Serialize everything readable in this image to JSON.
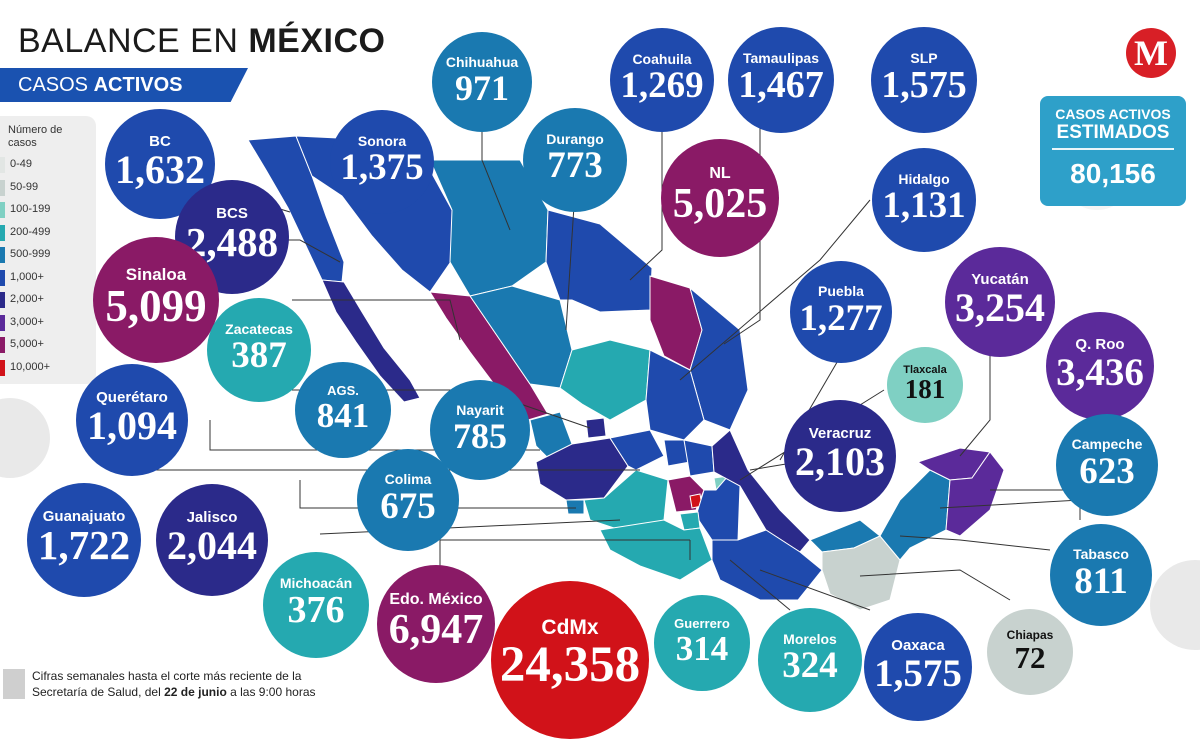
{
  "header": {
    "title_light": "BALANCE EN",
    "title_bold": "MÉXICO",
    "subtitle_light": "CASOS",
    "subtitle_bold": "ACTIVOS"
  },
  "logo": {
    "letter": "M",
    "icon": "milenio-logo-icon"
  },
  "total": {
    "label_line1": "CASOS ACTIVOS",
    "label_line2": "ESTIMADOS",
    "value": "80,156"
  },
  "legend": {
    "title": "Número de casos",
    "items": [
      {
        "label": "0-49",
        "color": "#e2e6e4"
      },
      {
        "label": "50-99",
        "color": "#c8d2cf"
      },
      {
        "label": "100-199",
        "color": "#7fd0c3"
      },
      {
        "label": "200-499",
        "color": "#25a9b0"
      },
      {
        "label": "500-999",
        "color": "#1a79b0"
      },
      {
        "label": "1,000+",
        "color": "#1f4aad"
      },
      {
        "label": "2,000+",
        "color": "#2b2a8a"
      },
      {
        "label": "3,000+",
        "color": "#5b2a9a"
      },
      {
        "label": "5,000+",
        "color": "#8a1a66"
      },
      {
        "label": "10,000+",
        "color": "#d11219"
      }
    ]
  },
  "states": [
    {
      "name": "BC",
      "value": "1,632",
      "color": "#1f4aad"
    },
    {
      "name": "Sonora",
      "value": "1,375",
      "color": "#1f4aad"
    },
    {
      "name": "Chihuahua",
      "value": "971",
      "color": "#1a79b0"
    },
    {
      "name": "Durango",
      "value": "773",
      "color": "#1a79b0"
    },
    {
      "name": "Coahuila",
      "value": "1,269",
      "color": "#1f4aad"
    },
    {
      "name": "Tamaulipas",
      "value": "1,467",
      "color": "#1f4aad"
    },
    {
      "name": "SLP",
      "value": "1,575",
      "color": "#1f4aad"
    },
    {
      "name": "BCS",
      "value": "2,488",
      "color": "#2b2a8a"
    },
    {
      "name": "NL",
      "value": "5,025",
      "color": "#8a1a66"
    },
    {
      "name": "Hidalgo",
      "value": "1,131",
      "color": "#1f4aad"
    },
    {
      "name": "Sinaloa",
      "value": "5,099",
      "color": "#8a1a66"
    },
    {
      "name": "Zacatecas",
      "value": "387",
      "color": "#25a9b0"
    },
    {
      "name": "Puebla",
      "value": "1,277",
      "color": "#1f4aad"
    },
    {
      "name": "Yucatán",
      "value": "3,254",
      "color": "#5b2a9a"
    },
    {
      "name": "Q. Roo",
      "value": "3,436",
      "color": "#5b2a9a"
    },
    {
      "name": "Tlaxcala",
      "value": "181",
      "color": "#7fd0c3"
    },
    {
      "name": "AGS.",
      "value": "841",
      "color": "#1a79b0"
    },
    {
      "name": "Querétaro",
      "value": "1,094",
      "color": "#1f4aad"
    },
    {
      "name": "Nayarit",
      "value": "785",
      "color": "#1a79b0"
    },
    {
      "name": "Veracruz",
      "value": "2,103",
      "color": "#2b2a8a"
    },
    {
      "name": "Campeche",
      "value": "623",
      "color": "#1a79b0"
    },
    {
      "name": "Colima",
      "value": "675",
      "color": "#1a79b0"
    },
    {
      "name": "Guanajuato",
      "value": "1,722",
      "color": "#1f4aad"
    },
    {
      "name": "Jalisco",
      "value": "2,044",
      "color": "#2b2a8a"
    },
    {
      "name": "Tabasco",
      "value": "811",
      "color": "#1a79b0"
    },
    {
      "name": "Michoacán",
      "value": "376",
      "color": "#25a9b0"
    },
    {
      "name": "Edo. México",
      "value": "6,947",
      "color": "#8a1a66"
    },
    {
      "name": "CdMx",
      "value": "24,358",
      "color": "#d11219"
    },
    {
      "name": "Guerrero",
      "value": "314",
      "color": "#25a9b0"
    },
    {
      "name": "Morelos",
      "value": "324",
      "color": "#25a9b0"
    },
    {
      "name": "Oaxaca",
      "value": "1,575",
      "color": "#1f4aad"
    },
    {
      "name": "Chiapas",
      "value": "72",
      "color": "#c8d2cf"
    }
  ],
  "footnote": {
    "text_before": "Cifras semanales hasta el corte más reciente de la Secretaría de Salud, del ",
    "date_bold": "22 de junio",
    "text_after": " a las 9:00 horas"
  }
}
